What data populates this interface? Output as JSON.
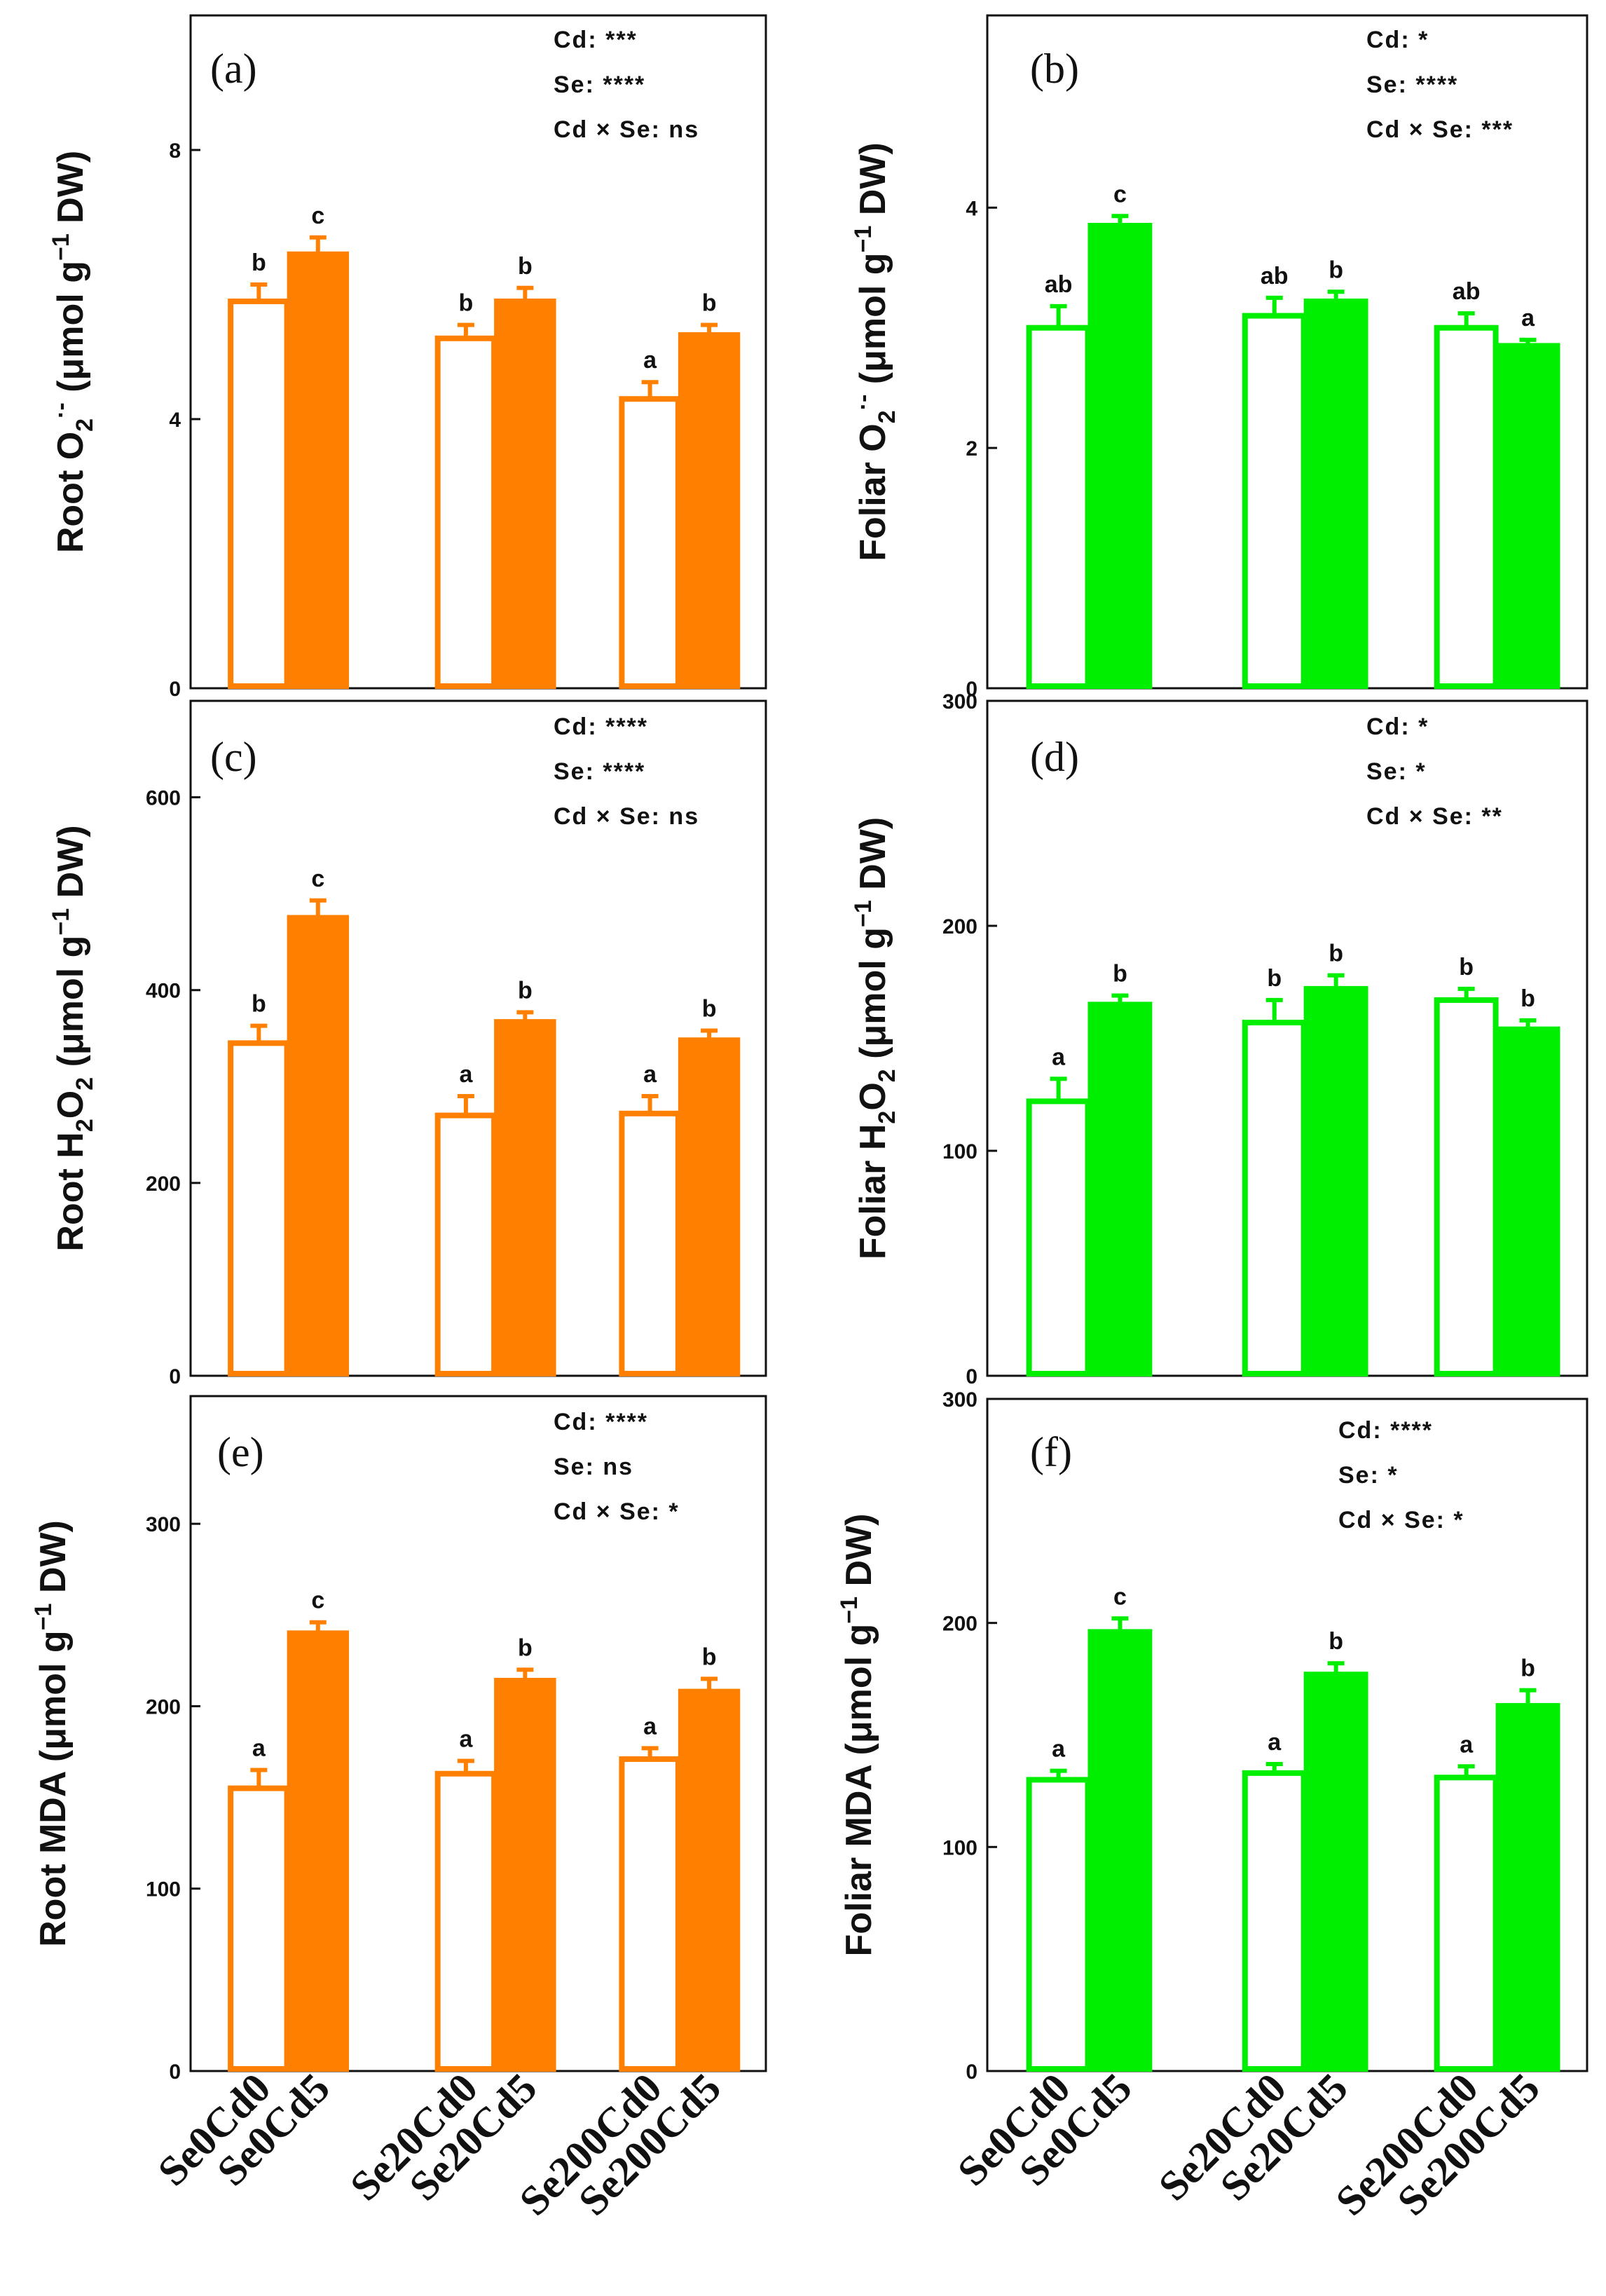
{
  "chart_data": [
    {
      "id": "a",
      "type": "bar",
      "panel_label": "(a)",
      "ylabel": {
        "pre": "Root O",
        "sub": "2",
        "sup": "·-",
        "unit": " (μmol g",
        "unit_sup": "−1",
        "post": " DW)"
      },
      "ylim": [
        0,
        10
      ],
      "ticks": [
        0,
        4,
        8
      ],
      "tick_labels": [
        "0",
        "4",
        "8"
      ],
      "categories": [
        "Se0Cd0",
        "Se0Cd5",
        "Se20Cd0",
        "Se20Cd5",
        "Se200Cd0",
        "Se200Cd5"
      ],
      "values": [
        5.75,
        6.45,
        5.2,
        5.75,
        4.3,
        5.25
      ],
      "errors": [
        0.25,
        0.25,
        0.2,
        0.2,
        0.25,
        0.15
      ],
      "letters": [
        "b",
        "c",
        "b",
        "b",
        "a",
        "b"
      ],
      "stats": [
        "Cd: ***",
        "Se: ****",
        "Cd × Se: ns"
      ],
      "color": "#ff8000"
    },
    {
      "id": "b",
      "type": "bar",
      "panel_label": "(b)",
      "ylabel": {
        "pre": "Foliar O",
        "sub": "2",
        "sup": "·-",
        "unit": " (μmol g",
        "unit_sup": "−1",
        "post": " DW)"
      },
      "ylim": [
        0,
        5.6
      ],
      "ticks": [
        0,
        2,
        4
      ],
      "tick_labels": [
        "0",
        "2",
        "4"
      ],
      "categories": [
        "Se0Cd0",
        "Se0Cd5",
        "Se20Cd0",
        "Se20Cd5",
        "Se200Cd0",
        "Se200Cd5"
      ],
      "values": [
        3.0,
        3.85,
        3.1,
        3.22,
        3.0,
        2.85
      ],
      "errors": [
        0.18,
        0.08,
        0.15,
        0.08,
        0.12,
        0.05
      ],
      "letters": [
        "ab",
        "c",
        "ab",
        "b",
        "ab",
        "a"
      ],
      "stats": [
        "Cd: *",
        "Se: ****",
        "Cd × Se: ***"
      ],
      "color": "#00ee00"
    },
    {
      "id": "c",
      "type": "bar",
      "panel_label": "(c)",
      "ylabel": {
        "pre": "Root H",
        "sub": "2",
        "mid": "O",
        "sub2": "2",
        "unit": " (μmol g",
        "unit_sup": "−1",
        "post": " DW)"
      },
      "ylim": [
        0,
        700
      ],
      "ticks": [
        0,
        200,
        400,
        600
      ],
      "tick_labels": [
        "0",
        "200",
        "400",
        "600"
      ],
      "categories": [
        "Se0Cd0",
        "Se0Cd5",
        "Se20Cd0",
        "Se20Cd5",
        "Se200Cd0",
        "Se200Cd5"
      ],
      "values": [
        345,
        475,
        270,
        367,
        272,
        348
      ],
      "errors": [
        18,
        18,
        20,
        10,
        18,
        10
      ],
      "letters": [
        "b",
        "c",
        "a",
        "b",
        "a",
        "b"
      ],
      "stats": [
        "Cd: ****",
        "Se: ****",
        "Cd × Se: ns"
      ],
      "color": "#ff8000"
    },
    {
      "id": "d",
      "type": "bar",
      "panel_label": "(d)",
      "ylabel": {
        "pre": "Foliar H",
        "sub": "2",
        "mid": "O",
        "sub2": "2",
        "unit": " (μmol g",
        "unit_sup": "−1",
        "post": " DW)"
      },
      "ylim": [
        0,
        300
      ],
      "ticks": [
        0,
        100,
        200,
        300
      ],
      "tick_labels": [
        "0",
        "100",
        "200",
        "300"
      ],
      "categories": [
        "Se0Cd0",
        "Se0Cd5",
        "Se20Cd0",
        "Se20Cd5",
        "Se200Cd0",
        "Se200Cd5"
      ],
      "values": [
        122,
        165,
        157,
        172,
        167,
        154
      ],
      "errors": [
        10,
        4,
        10,
        6,
        5,
        4
      ],
      "letters": [
        "a",
        "b",
        "b",
        "b",
        "b",
        "b"
      ],
      "stats": [
        "Cd: *",
        "Se: *",
        "Cd × Se: **"
      ],
      "color": "#00ee00"
    },
    {
      "id": "e",
      "type": "bar",
      "panel_label": "(e)",
      "ylabel": {
        "pre": "Root MDA ",
        "unit": "(μmol g",
        "unit_sup": "−1",
        "post": " DW)"
      },
      "ylim": [
        0,
        370
      ],
      "ticks": [
        0,
        100,
        200,
        300
      ],
      "tick_labels": [
        "0",
        "100",
        "200",
        "300"
      ],
      "categories": [
        "Se0Cd0",
        "Se0Cd5",
        "Se20Cd0",
        "Se20Cd5",
        "Se200Cd0",
        "Se200Cd5"
      ],
      "values": [
        155,
        240,
        163,
        214,
        171,
        208
      ],
      "errors": [
        10,
        6,
        7,
        6,
        6,
        7
      ],
      "letters": [
        "a",
        "c",
        "a",
        "b",
        "a",
        "b"
      ],
      "stats": [
        "Cd: ****",
        "Se: ns",
        "Cd × Se: *"
      ],
      "color": "#ff8000"
    },
    {
      "id": "f",
      "type": "bar",
      "panel_label": "(f)",
      "ylabel": {
        "pre": "Foliar MDA ",
        "unit": "(μmol g",
        "unit_sup": "−1",
        "post": " DW)"
      },
      "ylim": [
        0,
        300
      ],
      "ticks": [
        0,
        100,
        200,
        300
      ],
      "tick_labels": [
        "0",
        "100",
        "200",
        "300"
      ],
      "categories": [
        "Se0Cd0",
        "Se0Cd5",
        "Se20Cd0",
        "Se20Cd5",
        "Se200Cd0",
        "Se200Cd5"
      ],
      "values": [
        130,
        196,
        133,
        177,
        131,
        163
      ],
      "errors": [
        4,
        6,
        4,
        5,
        5,
        7
      ],
      "letters": [
        "a",
        "c",
        "a",
        "b",
        "a",
        "b"
      ],
      "stats": [
        "Cd: ****",
        "Se: *",
        "Cd × Se: *"
      ],
      "color": "#00ee00"
    }
  ]
}
